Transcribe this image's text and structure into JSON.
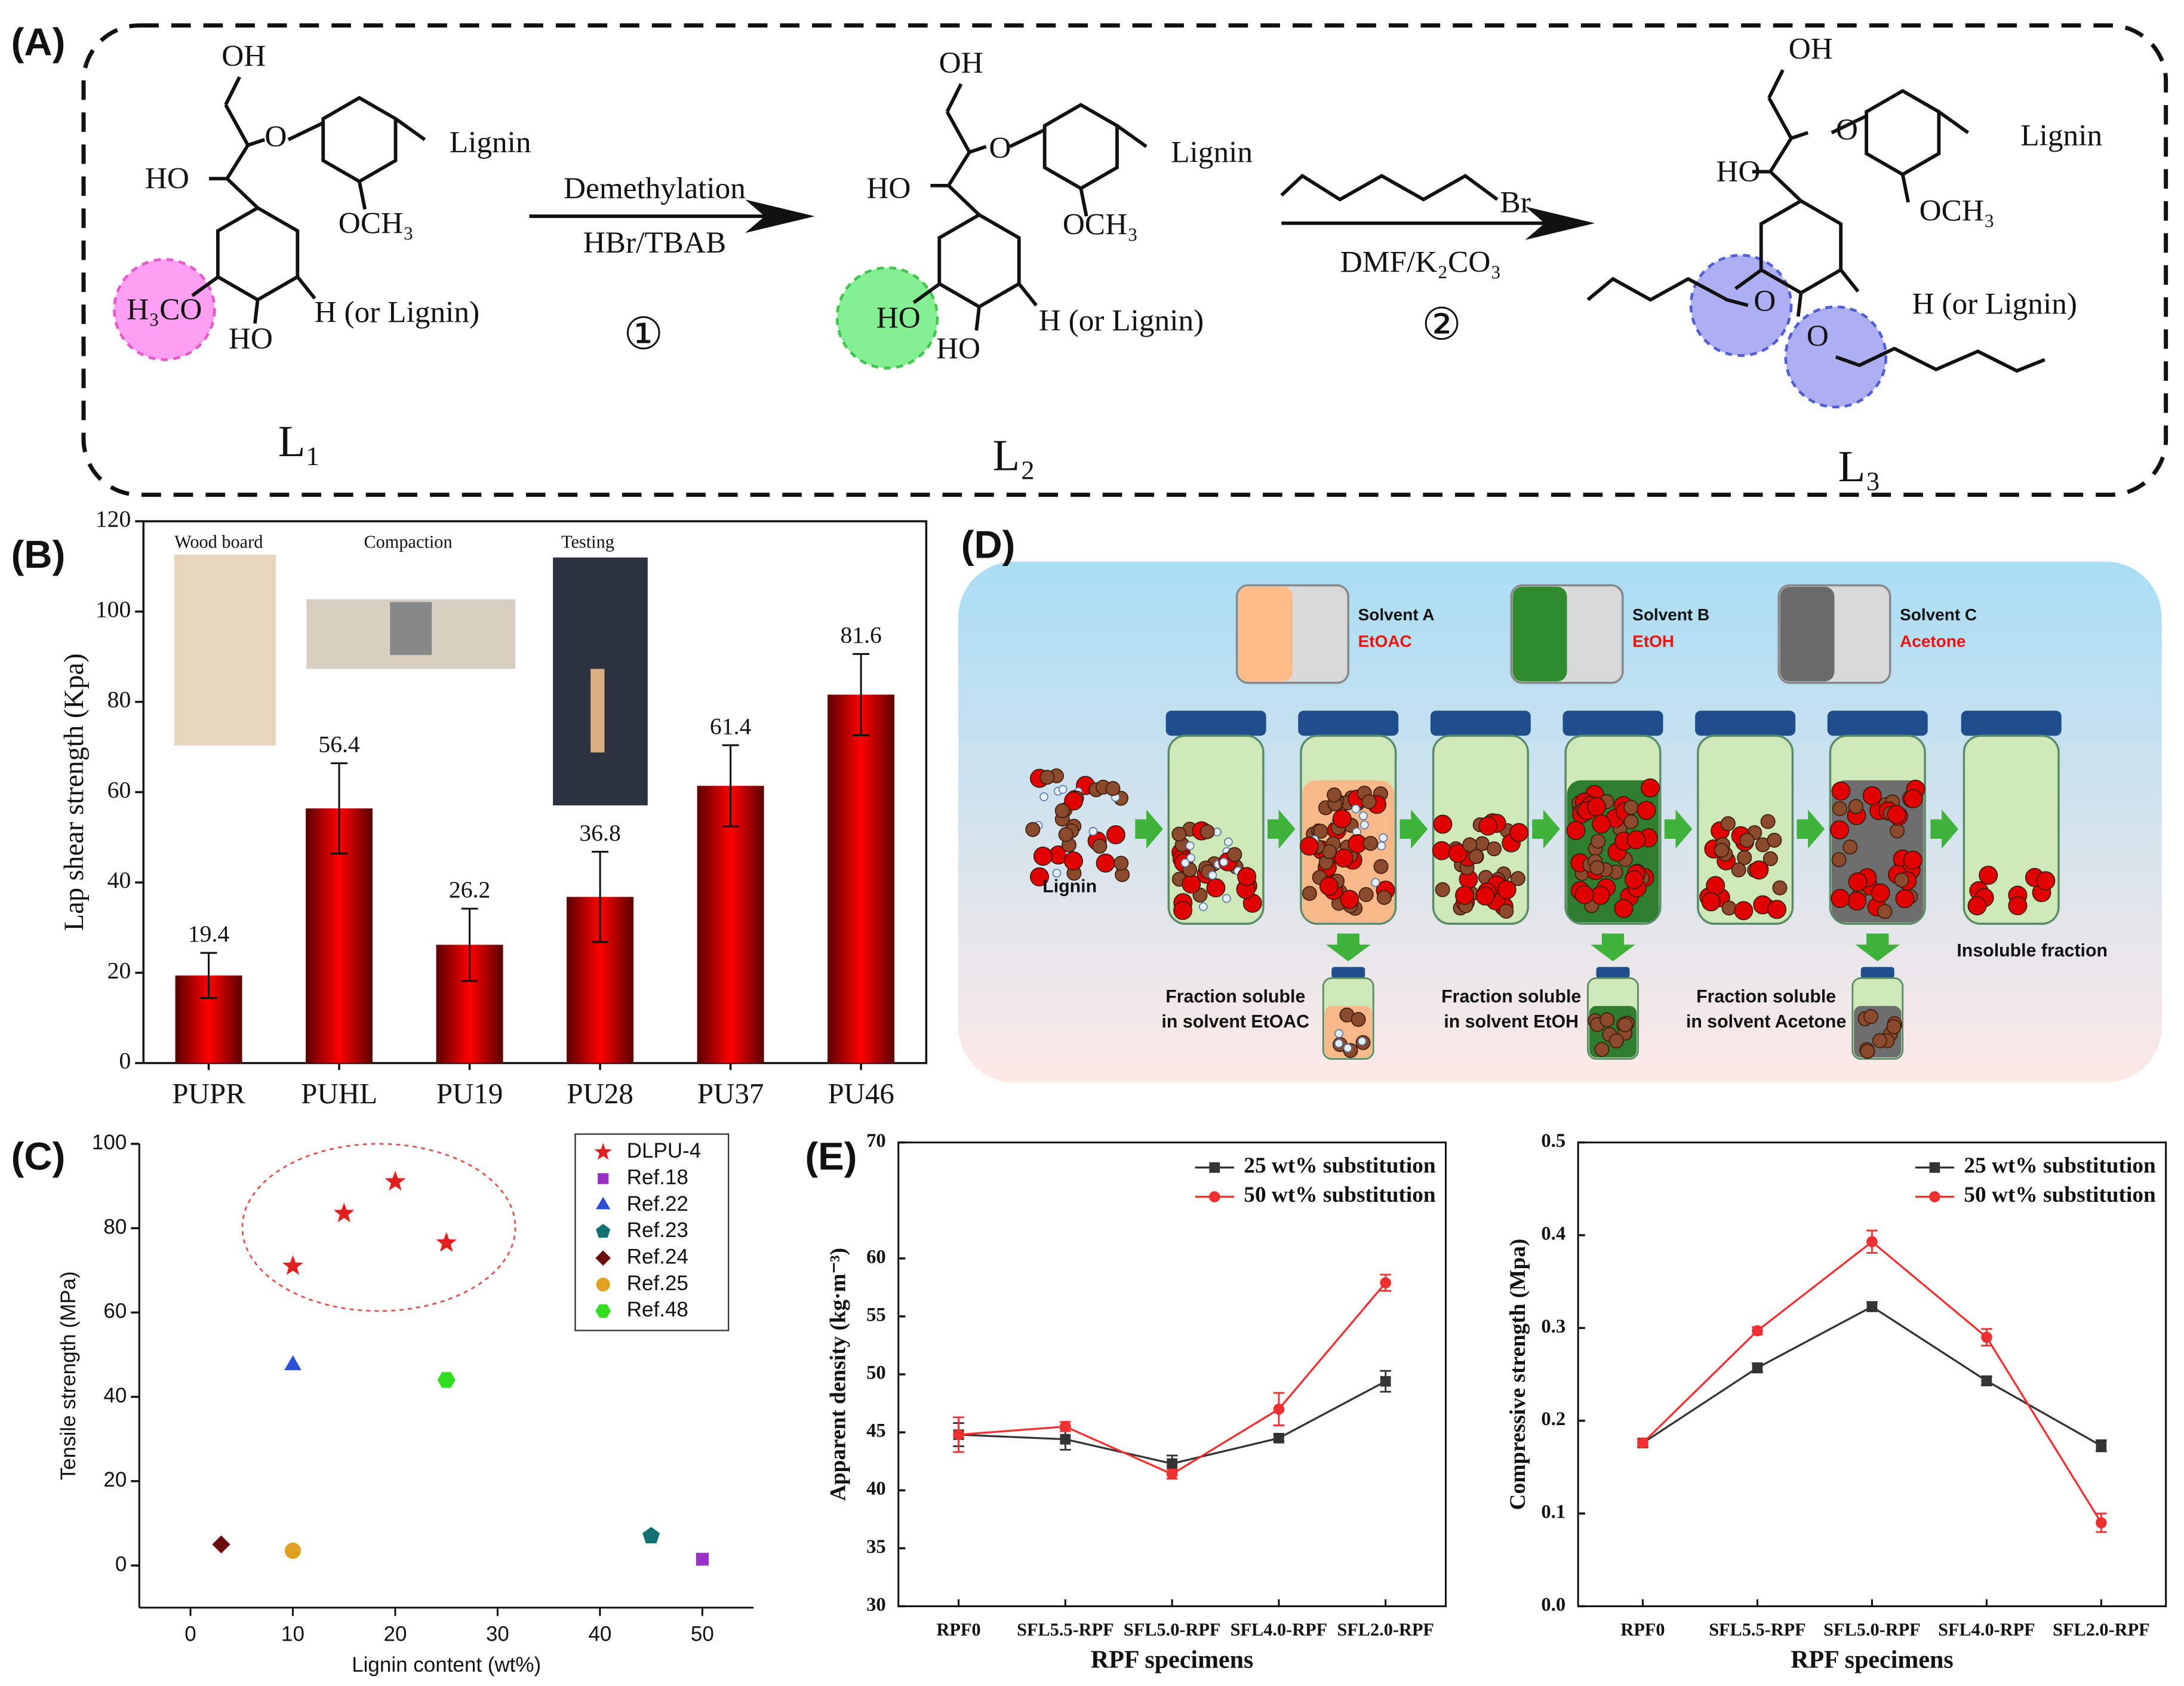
{
  "panel_labels": [
    "(A)",
    "(B)",
    "(C)",
    "(D)",
    "(E)"
  ],
  "scheme": {
    "compounds": [
      {
        "label": "L₁",
        "groups": [
          "OH",
          "O",
          "Lignin",
          "HO",
          "OCH₃",
          "H₃CO",
          "HO",
          "H (or Lignin)"
        ]
      },
      {
        "label": "L₂",
        "groups": [
          "OH",
          "O",
          "Lignin",
          "HO",
          "OCH₃",
          "HO",
          "HO",
          "H (or Lignin)"
        ]
      },
      {
        "label": "L₃",
        "groups": [
          "OH",
          "O",
          "Lignin",
          "HO",
          "OCH₃",
          "O",
          "O",
          "H (or Lignin)"
        ]
      }
    ],
    "steps": [
      {
        "number": "①",
        "reagents": [
          "Demethylation",
          "HBr/TBAB"
        ]
      },
      {
        "number": "②",
        "reagents": [
          "Br",
          "DMF/K₂CO₃"
        ]
      }
    ]
  },
  "chart_data": [
    {
      "type": "bar",
      "ylabel": "Lap shear strength (Kpa)",
      "categories": [
        "PUPR",
        "PUHL",
        "PU19",
        "PU28",
        "PU37",
        "PU46"
      ],
      "values": [
        19.4,
        56.4,
        26.2,
        36.8,
        61.4,
        81.6
      ],
      "errors": [
        5,
        10,
        8,
        10,
        9,
        9
      ],
      "color": "#ff0000",
      "ylim": [
        0,
        120
      ],
      "yticks": [
        0,
        20,
        40,
        60,
        80,
        100,
        120
      ],
      "insets": [
        "Wood board",
        "Compaction",
        "Testing"
      ]
    },
    {
      "type": "scatter",
      "xlabel": "Lignin content (wt%)",
      "ylabel": "Tensile  strength (MPa)",
      "xlim": [
        -5,
        55
      ],
      "xticks": [
        0,
        10,
        20,
        30,
        40,
        50
      ],
      "ylim": [
        -10,
        100
      ],
      "yticks": [
        0,
        20,
        40,
        60,
        80,
        100
      ],
      "legend": "upper right",
      "series": [
        {
          "name": "DLPU-4",
          "color": "#e02020",
          "marker": "star",
          "x": [
            10,
            15,
            20,
            25
          ],
          "values": [
            71,
            83.5,
            91,
            76.5
          ]
        },
        {
          "name": "Ref.18",
          "color": "#9b30c8",
          "marker": "square",
          "x": [
            50
          ],
          "values": [
            1.5
          ]
        },
        {
          "name": "Ref.22",
          "color": "#2b4fd6",
          "marker": "triangle",
          "x": [
            10
          ],
          "values": [
            47.5
          ]
        },
        {
          "name": "Ref.23",
          "color": "#137070",
          "marker": "pentagon",
          "x": [
            45
          ],
          "values": [
            7
          ]
        },
        {
          "name": "Ref.24",
          "color": "#6b0d0d",
          "marker": "diamond",
          "x": [
            3
          ],
          "values": [
            5
          ]
        },
        {
          "name": "Ref.25",
          "color": "#e0a020",
          "marker": "circle",
          "x": [
            10
          ],
          "values": [
            3.5
          ]
        },
        {
          "name": "Ref.48",
          "color": "#33dd22",
          "marker": "hexagon",
          "x": [
            25
          ],
          "values": [
            44
          ]
        }
      ]
    },
    {
      "type": "line",
      "xlabel": "RPF specimens",
      "ylabel": "Apparent density (kg·m⁻³)",
      "categories": [
        "RPF0",
        "SFL5.5-RPF",
        "SFL5.0-RPF",
        "SFL4.0-RPF",
        "SFL2.0-RPF"
      ],
      "ylim": [
        30,
        70
      ],
      "yticks": [
        30,
        35,
        40,
        45,
        50,
        55,
        60,
        70
      ],
      "legend": "upper right",
      "series": [
        {
          "name": "25 wt%  substitution",
          "color": "#333333",
          "values": [
            44.8,
            44.4,
            42.3,
            44.5,
            49.4
          ],
          "errors": [
            1,
            0.9,
            0.7,
            0.3,
            0.9
          ]
        },
        {
          "name": "50 wt%  substitution",
          "color": "#f03030",
          "values": [
            44.8,
            45.5,
            41.4,
            47,
            57.9
          ],
          "errors": [
            1.5,
            0.4,
            0.4,
            1.4,
            0.7
          ]
        }
      ]
    },
    {
      "type": "line",
      "xlabel": "RPF specimens",
      "ylabel": "Compressive strength (Mpa)",
      "categories": [
        "RPF0",
        "SFL5.5-RPF",
        "SFL5.0-RPF",
        "SFL4.0-RPF",
        "SFL2.0-RPF"
      ],
      "ylim": [
        0,
        0.5
      ],
      "yticks": [
        {
          "value": 0,
          "label": "0.0"
        },
        0.1,
        0.2,
        0.3,
        0.4,
        0.5
      ],
      "legend": "upper right",
      "series": [
        {
          "name": "25 wt%  substitution",
          "color": "#333333",
          "values": [
            0.176,
            0.257,
            0.323,
            0.243,
            0.173
          ],
          "errors": [
            0.004,
            0.005,
            0.005,
            0.005,
            0.006
          ]
        },
        {
          "name": "50 wt%  substitution",
          "color": "#f03030",
          "values": [
            0.176,
            0.297,
            0.393,
            0.29,
            0.09
          ],
          "errors": [
            0.004,
            0.004,
            0.012,
            0.009,
            0.01
          ]
        }
      ]
    }
  ],
  "diagram": {
    "solvents": [
      {
        "name": "Solvent A",
        "solvent": "EtOAC"
      },
      {
        "name": "Solvent B",
        "solvent": "EtOH"
      },
      {
        "name": "Solvent C",
        "solvent": "Acetone"
      }
    ],
    "feed": "Lignin",
    "fractions": [
      [
        "Fraction soluble",
        "in solvent EtOAC"
      ],
      [
        "Fraction soluble",
        "in solvent EtOH"
      ],
      [
        "Fraction soluble",
        "in solvent Acetone"
      ]
    ],
    "residue": "Insoluble fraction"
  }
}
